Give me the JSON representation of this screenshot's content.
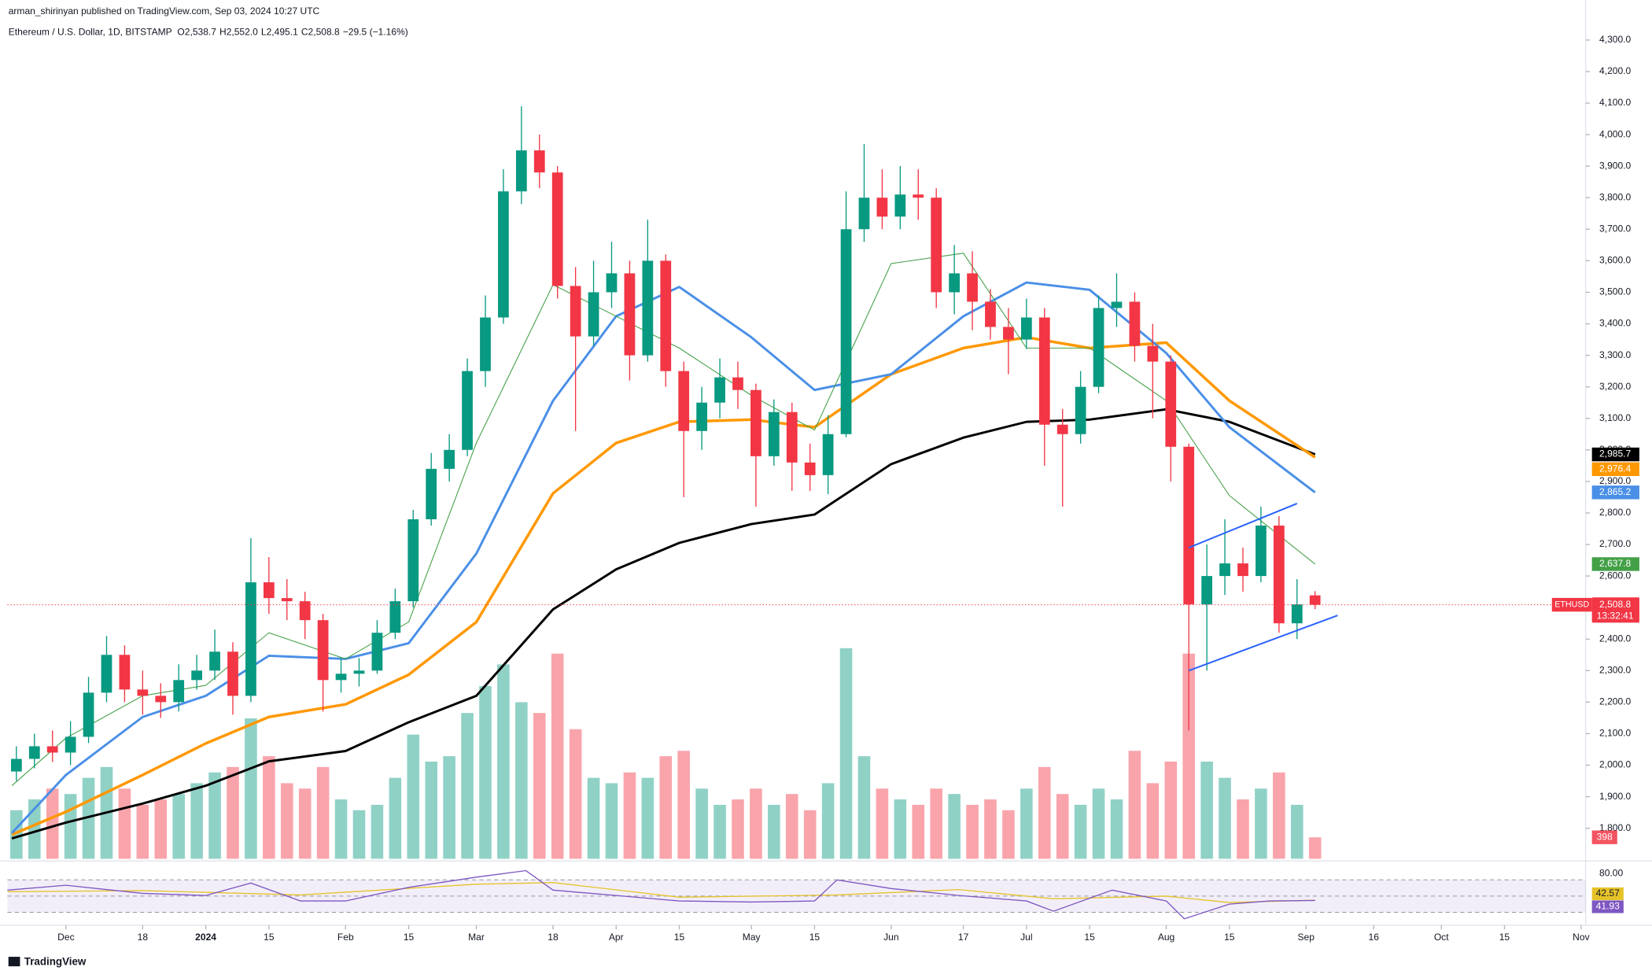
{
  "chart_data": {
    "type": "candlestick",
    "publisher_note": "arman_shirinyan published on TradingView.com, Sep 03, 2024 10:27 UTC",
    "symbol": "Ethereum / U.S. Dollar, 1D, BITSTAMP",
    "ohlc": [
      {
        "key": "O",
        "value": "2,538.7"
      },
      {
        "key": "H",
        "value": "2,552.0"
      },
      {
        "key": "L",
        "value": "2,495.1"
      },
      {
        "key": "C",
        "value": "2,508.8"
      }
    ],
    "change": "−29.5 (−1.16%)",
    "brand": "TradingView",
    "x": [
      -11,
      -7,
      -3,
      1,
      5,
      9,
      13,
      17,
      21,
      25,
      29,
      33,
      37,
      41,
      45,
      49,
      53,
      57,
      61,
      65,
      69,
      73,
      77,
      81,
      85,
      89,
      93,
      97,
      101,
      105,
      109,
      113,
      117,
      121,
      125,
      129,
      133,
      137,
      141,
      145,
      149,
      153,
      157,
      161,
      165,
      169,
      173,
      177,
      181,
      185,
      189,
      193,
      197,
      201,
      205,
      209,
      213,
      217,
      221,
      225,
      229,
      233,
      237,
      241,
      245,
      249,
      253,
      257,
      261,
      265,
      269,
      273,
      277
    ],
    "open": [
      1980,
      2020,
      2060,
      2040,
      2090,
      2230,
      2350,
      2240,
      2220,
      2200,
      2270,
      2300,
      2360,
      2220,
      2580,
      2530,
      2520,
      2460,
      2270,
      2290,
      2300,
      2420,
      2520,
      2780,
      2940,
      3000,
      3250,
      3420,
      3820,
      3950,
      3880,
      3520,
      3360,
      3500,
      3560,
      3300,
      3600,
      3250,
      3060,
      3150,
      3230,
      3190,
      2980,
      3120,
      2960,
      2920,
      3050,
      3700,
      3800,
      3740,
      3810,
      3800,
      3500,
      3560,
      3470,
      3390,
      3350,
      3420,
      3080,
      3050,
      3200,
      3450,
      3470,
      3330,
      3280,
      3010,
      2510,
      2600,
      2640,
      2600,
      2760,
      2450,
      2538.7
    ],
    "high": [
      2060,
      2100,
      2110,
      2140,
      2280,
      2410,
      2380,
      2300,
      2260,
      2320,
      2350,
      2430,
      2390,
      2720,
      2660,
      2590,
      2550,
      2480,
      2340,
      2340,
      2460,
      2560,
      2810,
      2990,
      3050,
      3290,
      3490,
      3890,
      4090,
      4000,
      3900,
      3580,
      3600,
      3660,
      3600,
      3730,
      3620,
      3280,
      3200,
      3290,
      3280,
      3210,
      3160,
      3150,
      3020,
      3110,
      3820,
      3970,
      3890,
      3900,
      3890,
      3830,
      3650,
      3630,
      3510,
      3450,
      3480,
      3450,
      3130,
      3250,
      3490,
      3560,
      3500,
      3400,
      3300,
      3020,
      2700,
      2780,
      2690,
      2820,
      2790,
      2590,
      2552.0
    ],
    "low": [
      1950,
      1990,
      2010,
      2000,
      2070,
      2200,
      2200,
      2160,
      2150,
      2170,
      2240,
      2270,
      2160,
      2200,
      2480,
      2460,
      2400,
      2170,
      2230,
      2250,
      2290,
      2400,
      2500,
      2760,
      2900,
      2980,
      3200,
      3400,
      3780,
      3830,
      3480,
      3060,
      3330,
      3450,
      3220,
      3280,
      3200,
      2850,
      3000,
      3100,
      3130,
      2820,
      2950,
      2870,
      2870,
      2860,
      3040,
      3660,
      3700,
      3700,
      3730,
      3450,
      3430,
      3380,
      3350,
      3240,
      3320,
      2950,
      2820,
      3020,
      3180,
      3390,
      3280,
      3100,
      2900,
      2110,
      2300,
      2540,
      2550,
      2580,
      2420,
      2400,
      2495.1
    ],
    "close": [
      2020,
      2060,
      2040,
      2090,
      2230,
      2350,
      2240,
      2220,
      2200,
      2270,
      2300,
      2360,
      2220,
      2580,
      2530,
      2520,
      2460,
      2270,
      2290,
      2300,
      2420,
      2520,
      2780,
      2940,
      3000,
      3250,
      3420,
      3820,
      3950,
      3880,
      3520,
      3360,
      3500,
      3560,
      3300,
      3600,
      3250,
      3060,
      3150,
      3230,
      3190,
      2980,
      3120,
      2960,
      2920,
      3050,
      3700,
      3800,
      3740,
      3810,
      3800,
      3500,
      3560,
      3470,
      3390,
      3350,
      3420,
      3080,
      3050,
      3200,
      3450,
      3470,
      3330,
      3280,
      3010,
      2510,
      2600,
      2640,
      2600,
      2760,
      2450,
      2510,
      2508.8
    ],
    "volume": [
      900,
      1100,
      1300,
      1200,
      1500,
      1700,
      1300,
      1000,
      1100,
      1200,
      1400,
      1600,
      1700,
      2600,
      1900,
      1400,
      1300,
      1700,
      1100,
      900,
      1000,
      1500,
      2300,
      1800,
      1900,
      2700,
      3200,
      3600,
      2900,
      2700,
      3800,
      2400,
      1500,
      1400,
      1600,
      1500,
      1900,
      2000,
      1300,
      1000,
      1100,
      1300,
      1000,
      1200,
      900,
      1400,
      3900,
      1900,
      1300,
      1100,
      1000,
      1300,
      1200,
      1000,
      1100,
      900,
      1300,
      1700,
      1200,
      1000,
      1300,
      1100,
      2000,
      1400,
      1800,
      3800,
      1800,
      1500,
      1100,
      1300,
      1600,
      1000,
      398
    ],
    "volume_lim": [
      0,
      8000
    ],
    "up_color": "#089981",
    "down_color": "#f23645",
    "xlim": [
      -13,
      337
    ],
    "xticks": [
      {
        "value": 0,
        "label": "Dec"
      },
      {
        "value": 17,
        "label": "18"
      },
      {
        "value": 31,
        "label": "2024"
      },
      {
        "value": 45,
        "label": "15"
      },
      {
        "value": 62,
        "label": "Feb"
      },
      {
        "value": 76,
        "label": "15"
      },
      {
        "value": 91,
        "label": "Mar"
      },
      {
        "value": 108,
        "label": "18"
      },
      {
        "value": 122,
        "label": "Apr"
      },
      {
        "value": 136,
        "label": "15"
      },
      {
        "value": 152,
        "label": "May"
      },
      {
        "value": 166,
        "label": "15"
      },
      {
        "value": 183,
        "label": "Jun"
      },
      {
        "value": 199,
        "label": "17"
      },
      {
        "value": 213,
        "label": "Jul"
      },
      {
        "value": 227,
        "label": "15"
      },
      {
        "value": 244,
        "label": "Aug"
      },
      {
        "value": 258,
        "label": "15"
      },
      {
        "value": 275,
        "label": "Sep"
      },
      {
        "value": 290,
        "label": "16"
      },
      {
        "value": 305,
        "label": "Oct"
      },
      {
        "value": 319,
        "label": "15"
      },
      {
        "value": 336,
        "label": "Nov"
      }
    ],
    "ylim": [
      1703,
      4427
    ],
    "yticks": [
      {
        "value": 1800,
        "label": "1,800.0"
      },
      {
        "value": 1900,
        "label": "1,900.0"
      },
      {
        "value": 2000,
        "label": "2,000.0"
      },
      {
        "value": 2100,
        "label": "2,100.0"
      },
      {
        "value": 2200,
        "label": "2,200.0"
      },
      {
        "value": 2300,
        "label": "2,300.0"
      },
      {
        "value": 2400,
        "label": "2,400.0"
      },
      {
        "value": 2500,
        "label": "2,500.0"
      },
      {
        "value": 2600,
        "label": "2,600.0"
      },
      {
        "value": 2700,
        "label": "2,700.0"
      },
      {
        "value": 2800,
        "label": "2,800.0"
      },
      {
        "value": 2900,
        "label": "2,900.0"
      },
      {
        "value": 3000,
        "label": "3,000.0"
      },
      {
        "value": 3100,
        "label": "3,100.0"
      },
      {
        "value": 3200,
        "label": "3,200.0"
      },
      {
        "value": 3300,
        "label": "3,300.0"
      },
      {
        "value": 3400,
        "label": "3,400.0"
      },
      {
        "value": 3500,
        "label": "3,500.0"
      },
      {
        "value": 3600,
        "label": "3,600.0"
      },
      {
        "value": 3700,
        "label": "3,700.0"
      },
      {
        "value": 3800,
        "label": "3,800.0"
      },
      {
        "value": 3900,
        "label": "3,900.0"
      },
      {
        "value": 4000,
        "label": "4,000.0"
      },
      {
        "value": 4100,
        "label": "4,100.0"
      },
      {
        "value": 4200,
        "label": "4,200.0"
      },
      {
        "value": 4300,
        "label": "4,300.0"
      }
    ],
    "ma_x": [
      -12,
      0,
      17,
      31,
      45,
      62,
      76,
      91,
      108,
      122,
      136,
      152,
      166,
      183,
      199,
      213,
      227,
      244,
      258,
      277
    ],
    "moving_averages": [
      {
        "color": "#000000",
        "width": 2.2,
        "values": [
          1768,
          1818,
          1878,
          1935,
          2012,
          2045,
          2136,
          2220,
          2494,
          2621,
          2705,
          2765,
          2795,
          2955,
          3039,
          3089,
          3096,
          3129,
          3089,
          2985.7
        ],
        "last_label": "2,985.7"
      },
      {
        "color": "#ff9800",
        "width": 2.6,
        "values": [
          1780,
          1852,
          1969,
          2069,
          2153,
          2193,
          2287,
          2454,
          2862,
          3022,
          3089,
          3096,
          3072,
          3240,
          3323,
          3357,
          3323,
          3340,
          3156,
          2976.4
        ],
        "last_label": "2,976.4"
      },
      {
        "color": "#4a8fe7",
        "width": 2.2,
        "values": [
          1785,
          1969,
          2153,
          2220,
          2347,
          2337,
          2387,
          2671,
          3156,
          3424,
          3517,
          3357,
          3190,
          3240,
          3424,
          3531,
          3508,
          3307,
          3072,
          2865.2
        ],
        "last_label": "2,865.2"
      },
      {
        "color": "#43a047",
        "width": 0.8,
        "values": [
          1935,
          2086,
          2220,
          2253,
          2420,
          2337,
          2454,
          3022,
          3524,
          3424,
          3323,
          3173,
          3063,
          3591,
          3624,
          3323,
          3323,
          3156,
          2855,
          2637.8
        ],
        "last_label": "2,637.8"
      }
    ],
    "trendlines": [
      {
        "color": "#2962ff",
        "x": [
          249,
          273
        ],
        "y": [
          2690,
          2830
        ]
      },
      {
        "color": "#2962ff",
        "x": [
          249,
          282
        ],
        "y": [
          2300,
          2475
        ]
      }
    ],
    "price_tag": {
      "symbol": "ETHUSD",
      "label": "2,508.8",
      "countdown": "13:32:41"
    },
    "rsi": {
      "ylim": [
        0,
        100
      ],
      "yticks": [
        {
          "value": 80,
          "label": "80.00"
        }
      ],
      "levels": [
        80,
        50,
        20
      ],
      "x": [
        -13,
        0,
        17,
        31,
        41,
        52,
        62,
        76,
        91,
        102,
        108,
        122,
        136,
        152,
        166,
        171,
        183,
        198,
        213,
        219,
        232,
        244,
        248,
        258,
        267,
        277
      ],
      "values": [
        61,
        70,
        55,
        51,
        74,
        41,
        41,
        66,
        85,
        97,
        61,
        51,
        41,
        39,
        41,
        80,
        64,
        51,
        41,
        22,
        61,
        41,
        8,
        35,
        41,
        41.93
      ],
      "color": "#7e57c2",
      "signal_x": [
        -13,
        17,
        52,
        91,
        108,
        136,
        171,
        198,
        219,
        244,
        258,
        277
      ],
      "signal_values": [
        58,
        60,
        52,
        72,
        75,
        48,
        52,
        62,
        45,
        50,
        38,
        42.57
      ],
      "signal_color": "#e6c229"
    }
  }
}
